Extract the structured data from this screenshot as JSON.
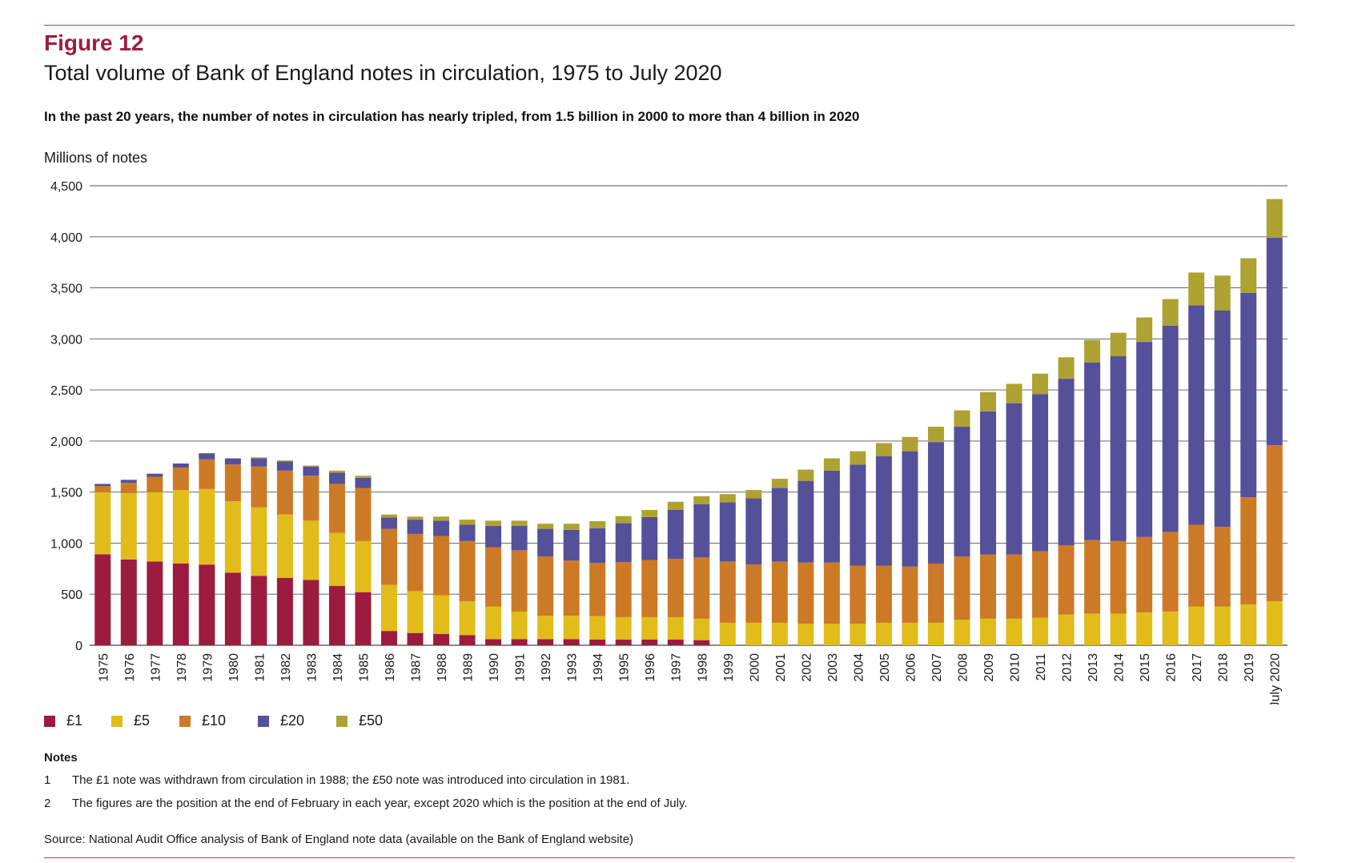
{
  "figure": {
    "label": "Figure 12",
    "title": "Total volume of Bank of England notes in circulation, 1975 to July 2020",
    "subtitle": "In the past 20 years, the number of notes in circulation has nearly tripled, from 1.5 billion in 2000 to more than 4 billion in 2020"
  },
  "notes": {
    "heading": "Notes",
    "items": [
      {
        "num": "1",
        "text": "The £1 note was withdrawn from circulation in 1988; the £50 note was introduced into circulation in 1981."
      },
      {
        "num": "2",
        "text": "The figures are the position at the end of February in each year, except 2020 which is the position at the end of July."
      }
    ]
  },
  "source": "Source: National Audit Office analysis of Bank of England note data (available on the Bank of England website)",
  "chart_data": {
    "type": "bar",
    "stacked": true,
    "ylabel": "Millions of notes",
    "ylim": [
      0,
      4500
    ],
    "yticks": [
      0,
      500,
      1000,
      1500,
      2000,
      2500,
      3000,
      3500,
      4000,
      4500
    ],
    "ytick_labels": [
      "0",
      "500",
      "1,000",
      "1,500",
      "2,000",
      "2,500",
      "3,000",
      "3,500",
      "4,000",
      "4,500"
    ],
    "grid": true,
    "legend_position": "bottom-left",
    "categories": [
      "1975",
      "1976",
      "1977",
      "1978",
      "1979",
      "1980",
      "1981",
      "1982",
      "1983",
      "1984",
      "1985",
      "1986",
      "1987",
      "1988",
      "1989",
      "1990",
      "1991",
      "1992",
      "1993",
      "1994",
      "1995",
      "1996",
      "1997",
      "1998",
      "1999",
      "2000",
      "2001",
      "2002",
      "2003",
      "2004",
      "2005",
      "2006",
      "2007",
      "2008",
      "2009",
      "2010",
      "2011",
      "2012",
      "2013",
      "2014",
      "2015",
      "2016",
      "2017",
      "2018",
      "2019",
      "July 2020"
    ],
    "series": [
      {
        "name": "£1",
        "color": "#9b1c3e",
        "values": [
          890,
          840,
          820,
          800,
          790,
          710,
          680,
          660,
          640,
          580,
          520,
          140,
          120,
          110,
          100,
          60,
          60,
          60,
          60,
          55,
          55,
          55,
          55,
          50,
          0,
          0,
          0,
          0,
          0,
          0,
          0,
          0,
          0,
          0,
          0,
          0,
          0,
          0,
          0,
          0,
          0,
          0,
          0,
          0,
          0,
          0
        ]
      },
      {
        "name": "£5",
        "color": "#e2bc1a",
        "values": [
          610,
          650,
          680,
          720,
          740,
          700,
          670,
          620,
          580,
          520,
          500,
          450,
          410,
          380,
          330,
          320,
          270,
          230,
          230,
          230,
          220,
          220,
          220,
          210,
          220,
          220,
          220,
          210,
          210,
          210,
          220,
          220,
          220,
          250,
          260,
          260,
          270,
          300,
          310,
          310,
          320,
          330,
          380,
          380,
          400,
          430
        ]
      },
      {
        "name": "£10",
        "color": "#cd7a26",
        "values": [
          60,
          100,
          150,
          220,
          290,
          360,
          400,
          430,
          440,
          480,
          520,
          550,
          560,
          580,
          590,
          580,
          600,
          580,
          540,
          520,
          540,
          560,
          570,
          600,
          600,
          570,
          600,
          600,
          600,
          570,
          560,
          550,
          580,
          620,
          630,
          630,
          650,
          680,
          720,
          710,
          740,
          780,
          800,
          780,
          1050,
          1530
        ]
      },
      {
        "name": "£20",
        "color": "#55509a",
        "values": [
          20,
          30,
          30,
          40,
          60,
          60,
          80,
          90,
          90,
          110,
          100,
          110,
          140,
          150,
          160,
          210,
          240,
          270,
          300,
          340,
          380,
          420,
          480,
          520,
          580,
          650,
          720,
          800,
          900,
          990,
          1070,
          1130,
          1190,
          1270,
          1400,
          1480,
          1540,
          1630,
          1740,
          1810,
          1910,
          2020,
          2150,
          2120,
          2000,
          2030
        ]
      },
      {
        "name": "£50",
        "color": "#ada232",
        "values": [
          0,
          0,
          0,
          0,
          0,
          0,
          10,
          10,
          10,
          20,
          20,
          30,
          30,
          40,
          50,
          50,
          50,
          50,
          60,
          70,
          70,
          70,
          80,
          80,
          80,
          80,
          90,
          110,
          120,
          130,
          130,
          140,
          150,
          160,
          190,
          190,
          200,
          210,
          220,
          230,
          240,
          260,
          320,
          340,
          340,
          380
        ]
      }
    ]
  }
}
